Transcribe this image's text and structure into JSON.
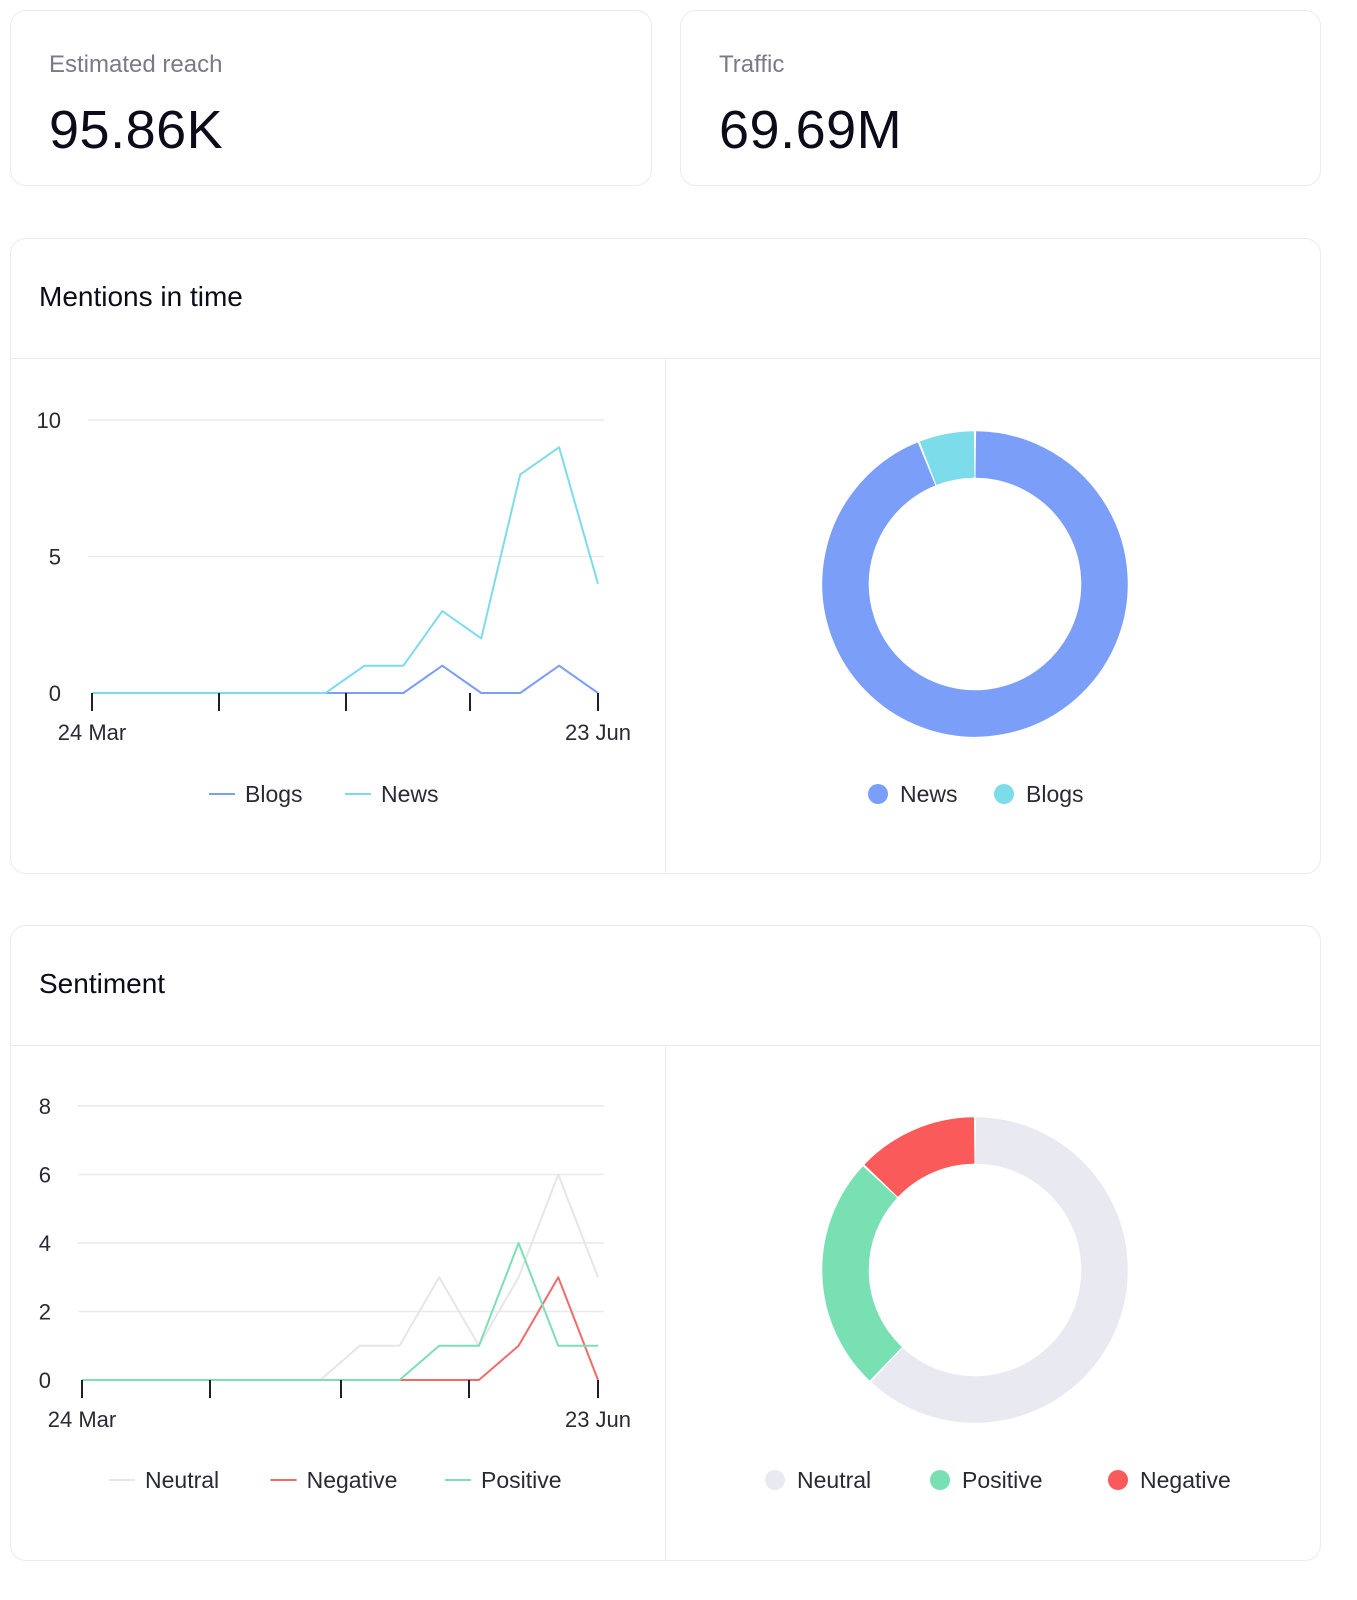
{
  "stats": [
    {
      "label": "Estimated reach",
      "value": "95.86K"
    },
    {
      "label": "Traffic",
      "value": "69.69M"
    }
  ],
  "mentions": {
    "title": "Mentions in time",
    "line": {
      "y_ticks": [
        "0",
        "5",
        "10"
      ],
      "x_start_label": "24 Mar",
      "x_end_label": "23 Jun",
      "series": [
        {
          "name": "Blogs",
          "color": "#7b9ef8",
          "values": [
            0,
            0,
            0,
            0,
            0,
            0,
            0,
            0,
            0,
            1,
            0,
            0,
            1,
            0
          ]
        },
        {
          "name": "News",
          "color": "#7ddcea",
          "values": [
            0,
            0,
            0,
            0,
            0,
            0,
            0,
            1,
            1,
            3,
            2,
            8,
            9,
            4
          ]
        }
      ]
    },
    "donut": {
      "slices": [
        {
          "name": "News",
          "color": "#7b9ef8",
          "value": 94
        },
        {
          "name": "Blogs",
          "color": "#7ddcea",
          "value": 6
        }
      ]
    }
  },
  "sentiment": {
    "title": "Sentiment",
    "line": {
      "y_ticks": [
        "0",
        "2",
        "4",
        "6",
        "8"
      ],
      "x_start_label": "24 Mar",
      "x_end_label": "23 Jun",
      "series": [
        {
          "name": "Neutral",
          "color": "#e6e6ea",
          "values": [
            0,
            0,
            0,
            0,
            0,
            0,
            0,
            1,
            1,
            3,
            1,
            3,
            6,
            3
          ]
        },
        {
          "name": "Negative",
          "color": "#f26a6a",
          "values": [
            0,
            0,
            0,
            0,
            0,
            0,
            0,
            0,
            0,
            0,
            0,
            1,
            3,
            0
          ]
        },
        {
          "name": "Positive",
          "color": "#7edfb4",
          "values": [
            0,
            0,
            0,
            0,
            0,
            0,
            0,
            0,
            0,
            1,
            1,
            4,
            1,
            1
          ]
        }
      ]
    },
    "donut": {
      "slices": [
        {
          "name": "Neutral",
          "color": "#e9e9f1",
          "value": 62
        },
        {
          "name": "Positive",
          "color": "#79e0b4",
          "value": 25
        },
        {
          "name": "Negative",
          "color": "#fb5a5a",
          "value": 13
        }
      ]
    }
  },
  "chart_data": [
    {
      "type": "line",
      "title": "Mentions in time",
      "x": [
        "24 Mar",
        "",
        "",
        "",
        "",
        "",
        "",
        "",
        "",
        "",
        "",
        "",
        "",
        "23 Jun"
      ],
      "series": [
        {
          "name": "Blogs",
          "values": [
            0,
            0,
            0,
            0,
            0,
            0,
            0,
            0,
            0,
            1,
            0,
            0,
            1,
            0
          ]
        },
        {
          "name": "News",
          "values": [
            0,
            0,
            0,
            0,
            0,
            0,
            0,
            1,
            1,
            3,
            2,
            8,
            9,
            4
          ]
        }
      ],
      "ylim": [
        0,
        10
      ],
      "legend": "bottom"
    },
    {
      "type": "pie",
      "categories": [
        "News",
        "Blogs"
      ],
      "values": [
        94,
        6
      ],
      "legend": "bottom"
    },
    {
      "type": "line",
      "title": "Sentiment",
      "x": [
        "24 Mar",
        "",
        "",
        "",
        "",
        "",
        "",
        "",
        "",
        "",
        "",
        "",
        "",
        "23 Jun"
      ],
      "series": [
        {
          "name": "Neutral",
          "values": [
            0,
            0,
            0,
            0,
            0,
            0,
            0,
            1,
            1,
            3,
            1,
            3,
            6,
            3
          ]
        },
        {
          "name": "Negative",
          "values": [
            0,
            0,
            0,
            0,
            0,
            0,
            0,
            0,
            0,
            0,
            0,
            1,
            3,
            0
          ]
        },
        {
          "name": "Positive",
          "values": [
            0,
            0,
            0,
            0,
            0,
            0,
            0,
            0,
            0,
            1,
            1,
            4,
            1,
            1
          ]
        }
      ],
      "ylim": [
        0,
        8
      ],
      "legend": "bottom"
    },
    {
      "type": "pie",
      "categories": [
        "Neutral",
        "Positive",
        "Negative"
      ],
      "values": [
        62,
        25,
        13
      ],
      "legend": "bottom"
    }
  ]
}
